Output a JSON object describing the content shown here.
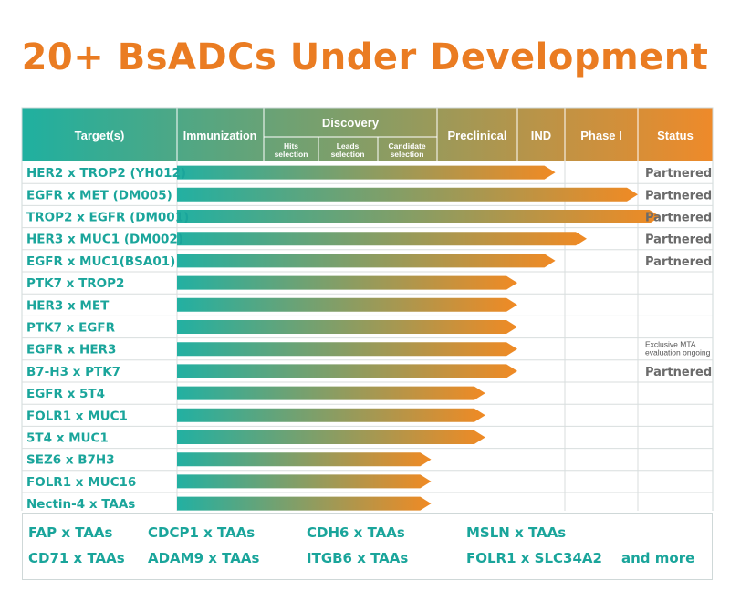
{
  "title": "20+ BsADCs Under Development",
  "header": {
    "targets": "Target(s)",
    "immunization": "Immunization",
    "discovery": "Discovery",
    "hits": [
      "Hits",
      "selection"
    ],
    "leads": [
      "Leads",
      "selection"
    ],
    "candidate": [
      "Candidate",
      "selection"
    ],
    "preclinical": "Preclinical",
    "ind": "IND",
    "phase1": "Phase I",
    "status": "Status"
  },
  "colors": {
    "header_start": "#1fb0a0",
    "header_end": "#ee8a2a",
    "bar_start": "#22b0a2",
    "bar_end": "#f08a24",
    "label": "#1aa59b",
    "title": "#ea7c22"
  },
  "chart_data": {
    "type": "bar",
    "orientation": "horizontal",
    "stages": [
      "Immunization",
      "Hits selection",
      "Leads selection",
      "Candidate selection",
      "Preclinical",
      "IND",
      "Phase I"
    ],
    "categories": [
      "HER2 x TROP2 (YH012)",
      "EGFR x MET (DM005)",
      "TROP2 x EGFR (DM001)",
      "HER3 x MUC1 (DM002)",
      "EGFR x MUC1(BSA01)",
      "PTK7 x TROP2",
      "HER3 x MET",
      "PTK7 x EGFR",
      "EGFR x HER3",
      "B7-H3 x PTK7",
      "EGFR x 5T4",
      "FOLR1 x MUC1",
      "5T4 x MUC1",
      "SEZ6 x B7H3",
      "FOLR1 x MUC16",
      "Nectin-4 x TAAs"
    ],
    "values": [
      5.8,
      7.0,
      7.3,
      6.3,
      5.8,
      5.0,
      5.0,
      5.0,
      5.0,
      5.0,
      4.6,
      4.6,
      4.6,
      3.9,
      3.9,
      3.9
    ],
    "status": [
      "Partnered",
      "Partnered",
      "Partnered",
      "Partnered",
      "Partnered",
      "",
      "",
      "",
      "Exclusive MTA evaluation ongoing",
      "Partnered",
      "",
      "",
      "",
      "",
      "",
      ""
    ]
  },
  "others": [
    "FAP x TAAs",
    "CDCP1 x TAAs",
    "CDH6 x  TAAs",
    "MSLN x TAAs",
    "CD71 x TAAs",
    "ADAM9 x TAAs",
    "ITGB6 x TAAs",
    "FOLR1 x SLC34A2",
    "and more"
  ]
}
